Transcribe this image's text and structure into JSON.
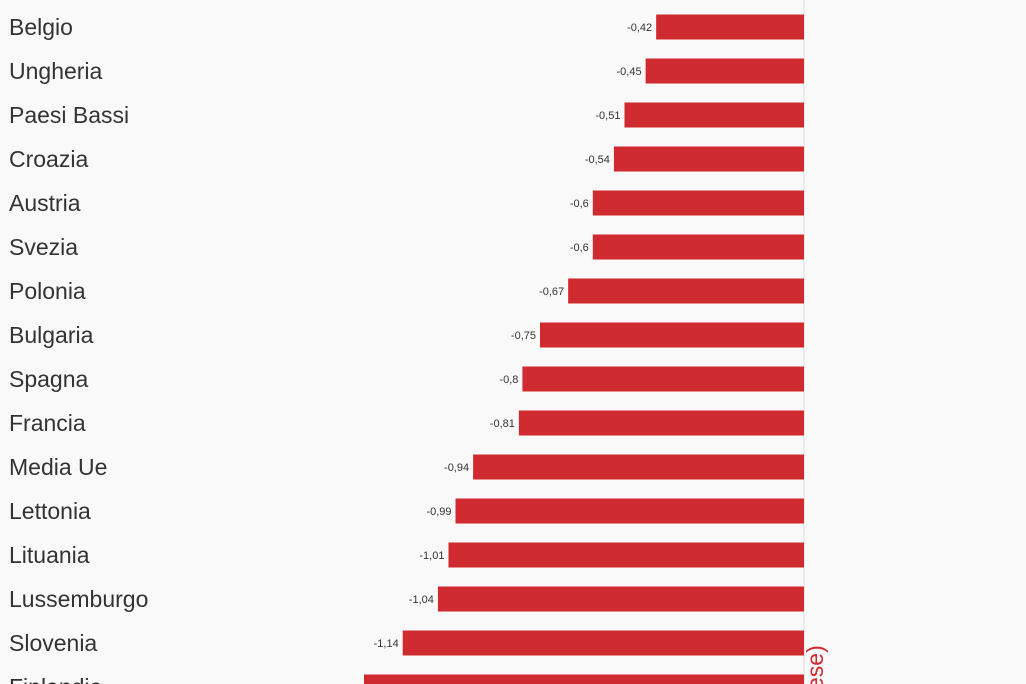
{
  "chart_data": {
    "type": "bar",
    "orientation": "horizontal",
    "categories": [
      "Belgio",
      "Ungheria",
      "Paesi Bassi",
      "Croazia",
      "Austria",
      "Svezia",
      "Polonia",
      "Bulgaria",
      "Spagna",
      "Francia",
      "Media Ue",
      "Lettonia",
      "Lituania",
      "Lussemburgo",
      "Slovenia",
      "Finlandia"
    ],
    "values": [
      -0.42,
      -0.45,
      -0.51,
      -0.54,
      -0.6,
      -0.6,
      -0.67,
      -0.75,
      -0.8,
      -0.81,
      -0.94,
      -0.99,
      -1.01,
      -1.04,
      -1.14,
      -1.25
    ],
    "value_labels": [
      "-0,42",
      "-0,45",
      "-0,51",
      "-0,54",
      "-0,6",
      "-0,6",
      "-0,67",
      "-0,75",
      "-0,8",
      "-0,81",
      "-0,94",
      "-0,99",
      "-1,01",
      "-1,04",
      "-1,14",
      ""
    ],
    "bar_color": "#cf2a30",
    "axis_partial_label": "ese)",
    "grid": false
  }
}
